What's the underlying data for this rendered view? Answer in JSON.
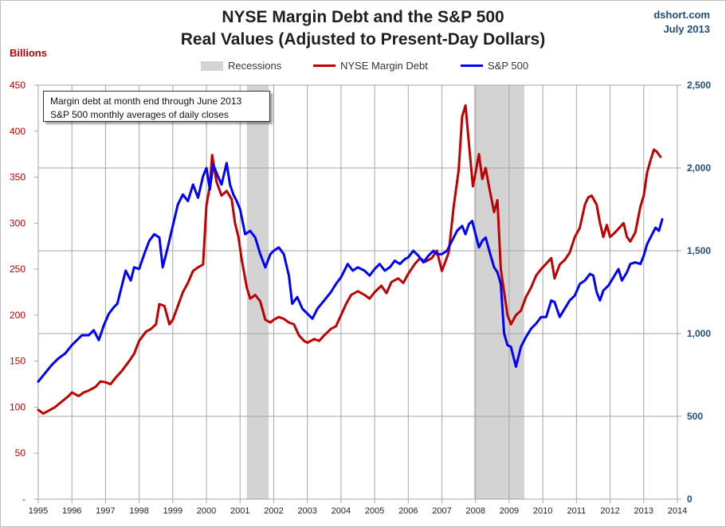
{
  "title": "NYSE Margin Debt and the S&P 500",
  "subtitle": "Real Values (Adjusted to Present-Day Dollars)",
  "source": "dshort.com",
  "source_date": "July 2013",
  "left_unit_label": "Billions",
  "note_lines": [
    "Margin debt at month end through June 2013",
    "S&P 500 monthly averages of daily closes"
  ],
  "colors": {
    "margin_debt": "#c00000",
    "sp500": "#0000ff",
    "recession": "#d3d3d3",
    "left_axis_text": "#c00000",
    "right_axis_text": "#1f4e79",
    "grid": "#a6a6a6"
  },
  "chart_data": {
    "type": "line",
    "title": "NYSE Margin Debt and the S&P 500",
    "subtitle": "Real Values (Adjusted to Present-Day Dollars)",
    "xlim": [
      1995,
      2014
    ],
    "x_ticks": [
      "1995",
      "1996",
      "1997",
      "1998",
      "1999",
      "2000",
      "2001",
      "2002",
      "2003",
      "2004",
      "2005",
      "2006",
      "2007",
      "2008",
      "2009",
      "2010",
      "2011",
      "2012",
      "2013",
      "2014"
    ],
    "y_left": {
      "label": "Billions",
      "lim": [
        0,
        450
      ],
      "ticks": [
        "-",
        "50",
        "100",
        "150",
        "200",
        "250",
        "300",
        "350",
        "400",
        "450"
      ]
    },
    "y_right": {
      "lim": [
        0,
        2500
      ],
      "ticks": [
        "0",
        "500",
        "1,000",
        "1,500",
        "2,000",
        "2,500"
      ]
    },
    "grid": true,
    "legend": {
      "position": "top",
      "entries": [
        "Recessions",
        "NYSE Margin Debt",
        "S&P 500"
      ]
    },
    "recessions": [
      [
        2001.2,
        2001.85
      ],
      [
        2007.95,
        2009.45
      ]
    ],
    "series": [
      {
        "name": "NYSE Margin Debt",
        "axis": "left",
        "points": [
          [
            1995.0,
            97
          ],
          [
            1995.15,
            93
          ],
          [
            1995.3,
            96
          ],
          [
            1995.5,
            100
          ],
          [
            1995.7,
            106
          ],
          [
            1995.9,
            112
          ],
          [
            1996.0,
            116
          ],
          [
            1996.2,
            112
          ],
          [
            1996.35,
            116
          ],
          [
            1996.5,
            118
          ],
          [
            1996.7,
            122
          ],
          [
            1996.85,
            128
          ],
          [
            1997.0,
            127
          ],
          [
            1997.15,
            125
          ],
          [
            1997.3,
            132
          ],
          [
            1997.5,
            140
          ],
          [
            1997.7,
            150
          ],
          [
            1997.85,
            158
          ],
          [
            1998.0,
            172
          ],
          [
            1998.2,
            182
          ],
          [
            1998.35,
            185
          ],
          [
            1998.5,
            190
          ],
          [
            1998.6,
            212
          ],
          [
            1998.75,
            210
          ],
          [
            1998.9,
            190
          ],
          [
            1999.0,
            195
          ],
          [
            1999.15,
            210
          ],
          [
            1999.3,
            225
          ],
          [
            1999.45,
            235
          ],
          [
            1999.6,
            248
          ],
          [
            1999.75,
            252
          ],
          [
            1999.9,
            255
          ],
          [
            2000.0,
            320
          ],
          [
            2000.1,
            340
          ],
          [
            2000.17,
            374
          ],
          [
            2000.3,
            345
          ],
          [
            2000.45,
            330
          ],
          [
            2000.6,
            335
          ],
          [
            2000.75,
            326
          ],
          [
            2000.85,
            300
          ],
          [
            2000.95,
            285
          ],
          [
            2001.05,
            260
          ],
          [
            2001.2,
            230
          ],
          [
            2001.3,
            218
          ],
          [
            2001.45,
            222
          ],
          [
            2001.6,
            215
          ],
          [
            2001.75,
            195
          ],
          [
            2001.9,
            192
          ],
          [
            2002.0,
            195
          ],
          [
            2002.15,
            198
          ],
          [
            2002.3,
            196
          ],
          [
            2002.45,
            192
          ],
          [
            2002.6,
            190
          ],
          [
            2002.75,
            178
          ],
          [
            2002.9,
            172
          ],
          [
            2003.0,
            170
          ],
          [
            2003.2,
            174
          ],
          [
            2003.35,
            172
          ],
          [
            2003.5,
            178
          ],
          [
            2003.7,
            185
          ],
          [
            2003.85,
            188
          ],
          [
            2004.0,
            200
          ],
          [
            2004.15,
            212
          ],
          [
            2004.3,
            222
          ],
          [
            2004.5,
            226
          ],
          [
            2004.7,
            222
          ],
          [
            2004.85,
            218
          ],
          [
            2005.0,
            225
          ],
          [
            2005.2,
            232
          ],
          [
            2005.35,
            224
          ],
          [
            2005.5,
            236
          ],
          [
            2005.7,
            240
          ],
          [
            2005.85,
            235
          ],
          [
            2006.0,
            245
          ],
          [
            2006.2,
            256
          ],
          [
            2006.35,
            262
          ],
          [
            2006.5,
            258
          ],
          [
            2006.7,
            262
          ],
          [
            2006.85,
            270
          ],
          [
            2007.0,
            248
          ],
          [
            2007.2,
            268
          ],
          [
            2007.35,
            318
          ],
          [
            2007.5,
            358
          ],
          [
            2007.6,
            416
          ],
          [
            2007.7,
            428
          ],
          [
            2007.82,
            380
          ],
          [
            2007.92,
            340
          ],
          [
            2008.0,
            355
          ],
          [
            2008.1,
            375
          ],
          [
            2008.2,
            348
          ],
          [
            2008.3,
            360
          ],
          [
            2008.4,
            340
          ],
          [
            2008.55,
            312
          ],
          [
            2008.65,
            325
          ],
          [
            2008.75,
            250
          ],
          [
            2008.85,
            225
          ],
          [
            2008.95,
            200
          ],
          [
            2009.05,
            190
          ],
          [
            2009.2,
            200
          ],
          [
            2009.35,
            205
          ],
          [
            2009.5,
            220
          ],
          [
            2009.65,
            230
          ],
          [
            2009.8,
            243
          ],
          [
            2009.95,
            250
          ],
          [
            2010.1,
            256
          ],
          [
            2010.25,
            262
          ],
          [
            2010.35,
            240
          ],
          [
            2010.5,
            255
          ],
          [
            2010.65,
            260
          ],
          [
            2010.8,
            268
          ],
          [
            2010.95,
            285
          ],
          [
            2011.1,
            295
          ],
          [
            2011.25,
            320
          ],
          [
            2011.35,
            328
          ],
          [
            2011.45,
            330
          ],
          [
            2011.6,
            320
          ],
          [
            2011.7,
            300
          ],
          [
            2011.8,
            285
          ],
          [
            2011.9,
            298
          ],
          [
            2012.0,
            285
          ],
          [
            2012.15,
            290
          ],
          [
            2012.3,
            296
          ],
          [
            2012.4,
            300
          ],
          [
            2012.5,
            285
          ],
          [
            2012.6,
            280
          ],
          [
            2012.75,
            290
          ],
          [
            2012.9,
            318
          ],
          [
            2013.0,
            330
          ],
          [
            2013.1,
            355
          ],
          [
            2013.2,
            368
          ],
          [
            2013.3,
            380
          ],
          [
            2013.38,
            378
          ],
          [
            2013.5,
            372
          ]
        ]
      },
      {
        "name": "S&P 500",
        "axis": "right",
        "points": [
          [
            1995.0,
            710
          ],
          [
            1995.2,
            760
          ],
          [
            1995.4,
            810
          ],
          [
            1995.6,
            850
          ],
          [
            1995.8,
            880
          ],
          [
            1996.0,
            930
          ],
          [
            1996.15,
            960
          ],
          [
            1996.3,
            990
          ],
          [
            1996.5,
            990
          ],
          [
            1996.65,
            1020
          ],
          [
            1996.8,
            960
          ],
          [
            1996.95,
            1050
          ],
          [
            1997.1,
            1120
          ],
          [
            1997.25,
            1160
          ],
          [
            1997.35,
            1180
          ],
          [
            1997.5,
            1300
          ],
          [
            1997.6,
            1380
          ],
          [
            1997.75,
            1320
          ],
          [
            1997.85,
            1400
          ],
          [
            1998.0,
            1390
          ],
          [
            1998.15,
            1480
          ],
          [
            1998.3,
            1560
          ],
          [
            1998.45,
            1600
          ],
          [
            1998.6,
            1580
          ],
          [
            1998.7,
            1400
          ],
          [
            1998.85,
            1520
          ],
          [
            1999.0,
            1650
          ],
          [
            1999.15,
            1780
          ],
          [
            1999.3,
            1840
          ],
          [
            1999.45,
            1800
          ],
          [
            1999.6,
            1900
          ],
          [
            1999.75,
            1820
          ],
          [
            1999.9,
            1950
          ],
          [
            2000.0,
            2000
          ],
          [
            2000.1,
            1870
          ],
          [
            2000.2,
            2020
          ],
          [
            2000.3,
            1970
          ],
          [
            2000.45,
            1900
          ],
          [
            2000.6,
            2030
          ],
          [
            2000.7,
            1900
          ],
          [
            2000.8,
            1840
          ],
          [
            2000.9,
            1800
          ],
          [
            2001.0,
            1750
          ],
          [
            2001.15,
            1600
          ],
          [
            2001.3,
            1620
          ],
          [
            2001.45,
            1580
          ],
          [
            2001.6,
            1480
          ],
          [
            2001.75,
            1400
          ],
          [
            2001.9,
            1480
          ],
          [
            2002.0,
            1500
          ],
          [
            2002.15,
            1520
          ],
          [
            2002.3,
            1480
          ],
          [
            2002.45,
            1350
          ],
          [
            2002.55,
            1180
          ],
          [
            2002.7,
            1220
          ],
          [
            2002.85,
            1150
          ],
          [
            2003.0,
            1120
          ],
          [
            2003.15,
            1090
          ],
          [
            2003.3,
            1150
          ],
          [
            2003.5,
            1200
          ],
          [
            2003.7,
            1250
          ],
          [
            2003.85,
            1300
          ],
          [
            2004.0,
            1340
          ],
          [
            2004.2,
            1420
          ],
          [
            2004.35,
            1380
          ],
          [
            2004.5,
            1400
          ],
          [
            2004.7,
            1380
          ],
          [
            2004.85,
            1350
          ],
          [
            2005.0,
            1390
          ],
          [
            2005.15,
            1420
          ],
          [
            2005.3,
            1380
          ],
          [
            2005.45,
            1400
          ],
          [
            2005.6,
            1440
          ],
          [
            2005.75,
            1420
          ],
          [
            2005.9,
            1450
          ],
          [
            2006.0,
            1460
          ],
          [
            2006.15,
            1500
          ],
          [
            2006.3,
            1470
          ],
          [
            2006.45,
            1430
          ],
          [
            2006.6,
            1470
          ],
          [
            2006.75,
            1500
          ],
          [
            2006.85,
            1480
          ],
          [
            2007.0,
            1480
          ],
          [
            2007.15,
            1500
          ],
          [
            2007.3,
            1560
          ],
          [
            2007.45,
            1620
          ],
          [
            2007.6,
            1650
          ],
          [
            2007.7,
            1600
          ],
          [
            2007.8,
            1660
          ],
          [
            2007.9,
            1680
          ],
          [
            2008.0,
            1600
          ],
          [
            2008.1,
            1520
          ],
          [
            2008.2,
            1560
          ],
          [
            2008.3,
            1580
          ],
          [
            2008.45,
            1470
          ],
          [
            2008.55,
            1400
          ],
          [
            2008.65,
            1370
          ],
          [
            2008.75,
            1300
          ],
          [
            2008.85,
            1000
          ],
          [
            2008.95,
            930
          ],
          [
            2009.05,
            920
          ],
          [
            2009.2,
            800
          ],
          [
            2009.35,
            920
          ],
          [
            2009.5,
            980
          ],
          [
            2009.65,
            1030
          ],
          [
            2009.8,
            1060
          ],
          [
            2009.95,
            1100
          ],
          [
            2010.1,
            1100
          ],
          [
            2010.25,
            1200
          ],
          [
            2010.35,
            1190
          ],
          [
            2010.5,
            1100
          ],
          [
            2010.65,
            1150
          ],
          [
            2010.8,
            1200
          ],
          [
            2010.95,
            1230
          ],
          [
            2011.1,
            1300
          ],
          [
            2011.25,
            1320
          ],
          [
            2011.4,
            1360
          ],
          [
            2011.5,
            1350
          ],
          [
            2011.6,
            1250
          ],
          [
            2011.7,
            1200
          ],
          [
            2011.8,
            1260
          ],
          [
            2011.95,
            1290
          ],
          [
            2012.1,
            1340
          ],
          [
            2012.25,
            1390
          ],
          [
            2012.35,
            1320
          ],
          [
            2012.5,
            1370
          ],
          [
            2012.6,
            1420
          ],
          [
            2012.75,
            1430
          ],
          [
            2012.9,
            1420
          ],
          [
            2013.0,
            1470
          ],
          [
            2013.1,
            1540
          ],
          [
            2013.2,
            1580
          ],
          [
            2013.35,
            1640
          ],
          [
            2013.45,
            1620
          ],
          [
            2013.55,
            1690
          ]
        ]
      }
    ]
  }
}
